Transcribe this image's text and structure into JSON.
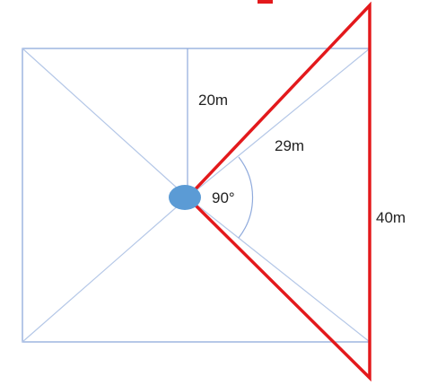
{
  "labels": {
    "half_side": "20m",
    "diagonal_length": "29m",
    "angle": "90°",
    "opposite_side": "40m"
  },
  "colors": {
    "square_outline": "#8faadc",
    "diagonals": "#b4c7e7",
    "triangle": "#e3191c",
    "center_marker": "#5b9bd5",
    "text": "#222222"
  }
}
